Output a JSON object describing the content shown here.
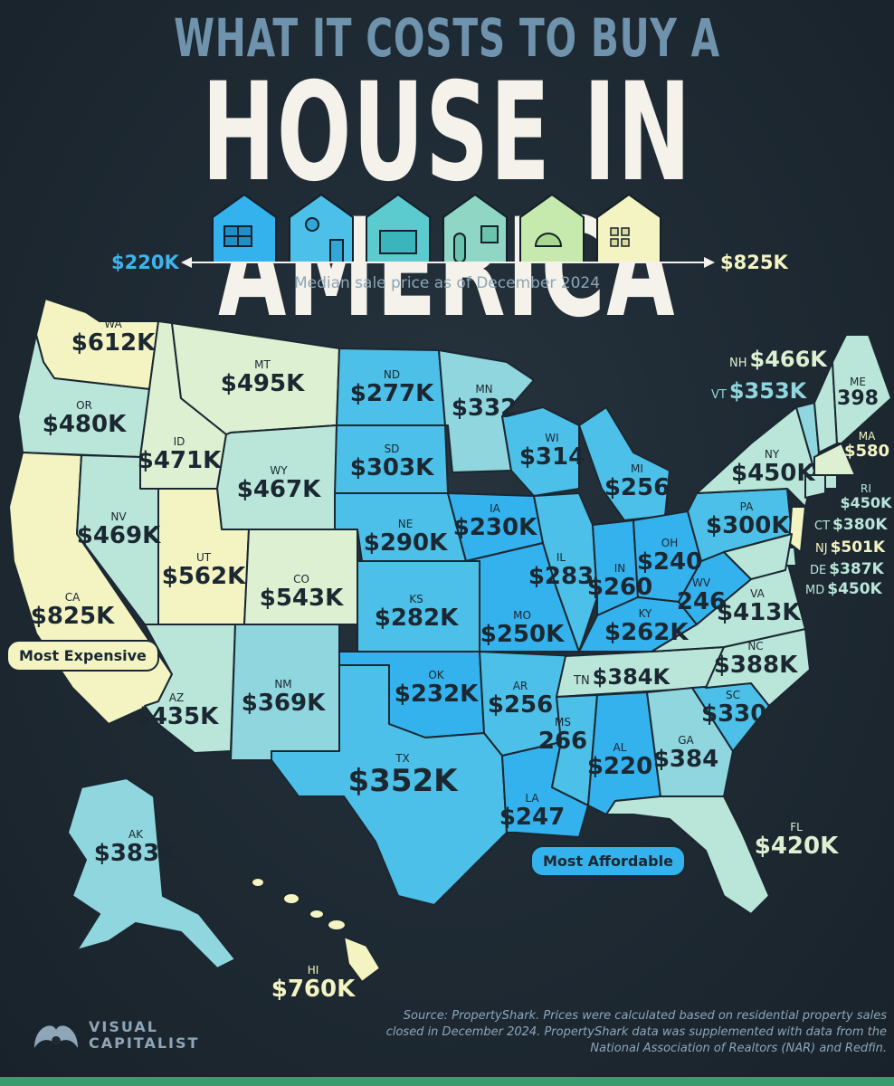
{
  "title_line1": "WHAT IT COSTS TO BUY A",
  "title_line2": "HOUSE IN AMERICA",
  "scale": {
    "low": "$220K",
    "high": "$825K"
  },
  "subtitle": "Median sale price as of December 2024",
  "colors": {
    "lowest": "#33b2ee",
    "low": "#4cc0e8",
    "mid": "#8fd6de",
    "upper": "#b9e6d9",
    "high": "#ddf0d2",
    "highest": "#f3f4c2",
    "background": "#1f2a33"
  },
  "states": [
    {
      "abbr": "WA",
      "price": "$612K"
    },
    {
      "abbr": "OR",
      "price": "$480K"
    },
    {
      "abbr": "CA",
      "price": "$825K"
    },
    {
      "abbr": "ID",
      "price": "$471K"
    },
    {
      "abbr": "MT",
      "price": "$495K"
    },
    {
      "abbr": "WY",
      "price": "$467K"
    },
    {
      "abbr": "NV",
      "price": "$469K"
    },
    {
      "abbr": "UT",
      "price": "$562K"
    },
    {
      "abbr": "CO",
      "price": "$543K"
    },
    {
      "abbr": "AZ",
      "price": "$435K"
    },
    {
      "abbr": "NM",
      "price": "$369K"
    },
    {
      "abbr": "ND",
      "price": "$277K"
    },
    {
      "abbr": "SD",
      "price": "$303K"
    },
    {
      "abbr": "NE",
      "price": "$290K"
    },
    {
      "abbr": "KS",
      "price": "$282K"
    },
    {
      "abbr": "OK",
      "price": "$232K"
    },
    {
      "abbr": "TX",
      "price": "$352K"
    },
    {
      "abbr": "MN",
      "price": "$332"
    },
    {
      "abbr": "IA",
      "price": "$230K"
    },
    {
      "abbr": "MO",
      "price": "$250K"
    },
    {
      "abbr": "AR",
      "price": "$256"
    },
    {
      "abbr": "LA",
      "price": "$247"
    },
    {
      "abbr": "WI",
      "price": "$314"
    },
    {
      "abbr": "IL",
      "price": "$283"
    },
    {
      "abbr": "MI",
      "price": "$256"
    },
    {
      "abbr": "IN",
      "price": "$260"
    },
    {
      "abbr": "OH",
      "price": "$240"
    },
    {
      "abbr": "KY",
      "price": "$262K"
    },
    {
      "abbr": "TN",
      "price": "$384K"
    },
    {
      "abbr": "MS",
      "price": "266"
    },
    {
      "abbr": "AL",
      "price": "$220"
    },
    {
      "abbr": "GA",
      "price": "$384"
    },
    {
      "abbr": "FL",
      "price": "$420K"
    },
    {
      "abbr": "SC",
      "price": "$330"
    },
    {
      "abbr": "NC",
      "price": "$388K"
    },
    {
      "abbr": "VA",
      "price": "$413K"
    },
    {
      "abbr": "WV",
      "price": "246"
    },
    {
      "abbr": "PA",
      "price": "$300K"
    },
    {
      "abbr": "NY",
      "price": "$450K"
    },
    {
      "abbr": "ME",
      "price": "398"
    },
    {
      "abbr": "NH",
      "price": "$466K"
    },
    {
      "abbr": "VT",
      "price": "$353K"
    },
    {
      "abbr": "MA",
      "price": "$580"
    },
    {
      "abbr": "RI",
      "price": "$450K"
    },
    {
      "abbr": "CT",
      "price": "$380K"
    },
    {
      "abbr": "NJ",
      "price": "$501K"
    },
    {
      "abbr": "DE",
      "price": "$387K"
    },
    {
      "abbr": "MD",
      "price": "$450K"
    },
    {
      "abbr": "AK",
      "price": "$383K"
    },
    {
      "abbr": "HI",
      "price": "$760K"
    }
  ],
  "labels": {
    "most_expensive": "Most Expensive",
    "most_affordable": "Most Affordable"
  },
  "source": "Source: PropertyShark. Prices were calculated based on residential property sales closed in December 2024. PropertyShark data was supplemented with data from the National Association of Realtors (NAR) and Redfin.",
  "logo": {
    "line1": "VISUAL",
    "line2": "CAPITALIST"
  }
}
